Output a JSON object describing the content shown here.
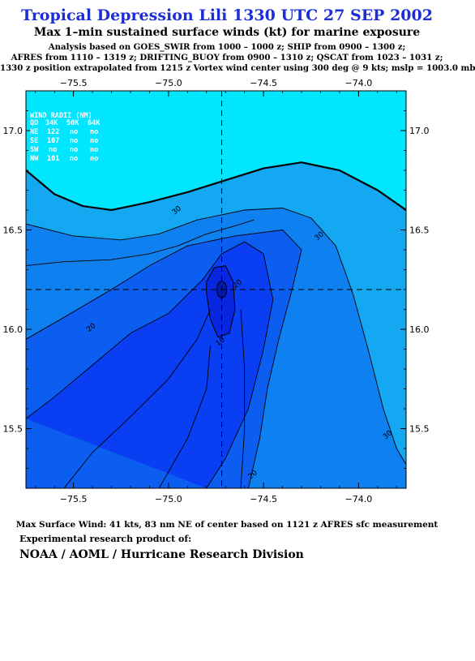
{
  "header": {
    "title": "Tropical Depression Lili 1330 UTC 27 SEP 2002",
    "subtitle": "Max 1–min sustained surface winds (kt) for marine exposure",
    "analysis_lines": [
      "Analysis based on  GOES_SWIR from 1000 – 1000 z;  SHIP from 0900 – 1300 z;",
      "AFRES from 1110 – 1319 z;  DRIFTING_BUOY from 0900 – 1310 z;  QSCAT from 1023 – 1031 z;",
      "1330 z position extrapolated from 1215 z Vortex wind center using 300 deg @ 9 kts; mslp = 1003.0 mb"
    ]
  },
  "wind_radii": {
    "title": "WIND RADII (NM)",
    "header": [
      "QD",
      "34K",
      "50K",
      "64K"
    ],
    "rows": [
      [
        "NE",
        "122",
        "no",
        "no"
      ],
      [
        "SE",
        "107",
        "no",
        "no"
      ],
      [
        "SW",
        "no",
        "no",
        "no"
      ],
      [
        "NW",
        "101",
        "no",
        "no"
      ]
    ]
  },
  "footer": {
    "max_wind": "Max Surface Wind: 41 kts, 83 nm NE of center based on 1121 z AFRES sfc measurement",
    "experimental": "Experimental research product of:",
    "org": "NOAA / AOML / Hurricane Research Division"
  },
  "colors": {
    "level_above_34": "#00e6ff",
    "level_30_34": "#14a7f2",
    "level_20_30": "#0f80f0",
    "level_10_20": "#0b5ef0",
    "level_0_10": "#0a3ef2",
    "center_core": "#0825e0",
    "contour_line": "#000000"
  },
  "chart_data": {
    "type": "contour",
    "units": "kt",
    "xlim": [
      -75.75,
      -73.75
    ],
    "ylim": [
      15.2,
      17.2
    ],
    "x_ticks": [
      -75.5,
      -75.0,
      -74.5,
      -74.0
    ],
    "x_tick_labels": [
      "−75.5",
      "−75.0",
      "−74.5",
      "−74.0"
    ],
    "y_ticks": [
      15.5,
      16.0,
      16.5,
      17.0
    ],
    "y_tick_labels": [
      "15.5",
      "16.0",
      "16.5",
      "17.0"
    ],
    "storm_center": {
      "lon": -74.72,
      "lat": 16.2
    },
    "contour_levels": [
      10,
      20,
      30,
      34
    ],
    "contour_labels": [
      {
        "text": "30",
        "lon": -74.95,
        "lat": 16.59
      },
      {
        "text": "30",
        "lon": -74.2,
        "lat": 16.46
      },
      {
        "text": "30",
        "lon": -73.84,
        "lat": 15.46
      },
      {
        "text": "20",
        "lon": -75.4,
        "lat": 16.0
      },
      {
        "text": "20",
        "lon": -74.63,
        "lat": 16.22
      },
      {
        "text": "20",
        "lon": -74.55,
        "lat": 15.26
      },
      {
        "text": "10",
        "lon": -74.72,
        "lat": 15.93
      }
    ],
    "contours": {
      "34": [
        [
          -75.75,
          16.8
        ],
        [
          -75.6,
          16.68
        ],
        [
          -75.45,
          16.62
        ],
        [
          -75.3,
          16.6
        ],
        [
          -75.1,
          16.64
        ],
        [
          -74.9,
          16.69
        ],
        [
          -74.7,
          16.75
        ],
        [
          -74.5,
          16.81
        ],
        [
          -74.3,
          16.84
        ],
        [
          -74.1,
          16.8
        ],
        [
          -73.9,
          16.7
        ],
        [
          -73.75,
          16.6
        ]
      ],
      "30": [
        [
          -75.75,
          16.53
        ],
        [
          -75.5,
          16.47
        ],
        [
          -75.25,
          16.45
        ],
        [
          -75.05,
          16.48
        ],
        [
          -74.85,
          16.55
        ],
        [
          -74.6,
          16.6
        ],
        [
          -74.4,
          16.61
        ],
        [
          -74.25,
          16.56
        ],
        [
          -74.12,
          16.42
        ],
        [
          -74.03,
          16.18
        ],
        [
          -73.95,
          15.9
        ],
        [
          -73.87,
          15.6
        ],
        [
          -73.8,
          15.4
        ],
        [
          -73.75,
          15.32
        ]
      ],
      "20": [
        [
          -75.75,
          15.95
        ],
        [
          -75.55,
          16.06
        ],
        [
          -75.3,
          16.2
        ],
        [
          -75.1,
          16.32
        ],
        [
          -74.9,
          16.42
        ],
        [
          -74.65,
          16.47
        ],
        [
          -74.4,
          16.5
        ],
        [
          -74.3,
          16.4
        ],
        [
          -74.35,
          16.2
        ],
        [
          -74.42,
          15.95
        ],
        [
          -74.48,
          15.7
        ],
        [
          -74.52,
          15.45
        ],
        [
          -74.58,
          15.2
        ]
      ],
      "10": [
        [
          -75.75,
          15.55
        ],
        [
          -75.6,
          15.66
        ],
        [
          -75.4,
          15.82
        ],
        [
          -75.2,
          15.98
        ],
        [
          -75.0,
          16.08
        ],
        [
          -74.82,
          16.25
        ],
        [
          -74.72,
          16.38
        ],
        [
          -74.6,
          16.44
        ],
        [
          -74.5,
          16.38
        ],
        [
          -74.45,
          16.15
        ],
        [
          -74.5,
          15.9
        ],
        [
          -74.58,
          15.6
        ],
        [
          -74.7,
          15.35
        ],
        [
          -74.8,
          15.2
        ]
      ],
      "ring": [
        [
          -74.8,
          16.24
        ],
        [
          -74.76,
          16.31
        ],
        [
          -74.7,
          16.32
        ],
        [
          -74.66,
          16.24
        ],
        [
          -74.65,
          16.1
        ],
        [
          -74.68,
          15.98
        ],
        [
          -74.74,
          15.96
        ],
        [
          -74.78,
          16.05
        ],
        [
          -74.8,
          16.18
        ],
        [
          -74.8,
          16.24
        ]
      ],
      "outer_left": [
        [
          -75.75,
          16.32
        ],
        [
          -75.55,
          16.34
        ],
        [
          -75.3,
          16.35
        ],
        [
          -75.1,
          16.38
        ],
        [
          -74.95,
          16.42
        ],
        [
          -74.8,
          16.48
        ],
        [
          -74.65,
          16.52
        ],
        [
          -74.55,
          16.55
        ]
      ],
      "bottom_left": [
        [
          -75.55,
          15.2
        ],
        [
          -75.4,
          15.38
        ],
        [
          -75.2,
          15.56
        ],
        [
          -75.0,
          15.75
        ],
        [
          -74.85,
          15.95
        ],
        [
          -74.78,
          16.1
        ]
      ],
      "bottom_mid": [
        [
          -74.78,
          15.92
        ],
        [
          -74.8,
          15.7
        ],
        [
          -74.9,
          15.45
        ],
        [
          -75.05,
          15.2
        ]
      ],
      "bottom_right": [
        [
          -74.62,
          16.1
        ],
        [
          -74.6,
          15.8
        ],
        [
          -74.6,
          15.5
        ],
        [
          -74.62,
          15.2
        ]
      ]
    }
  }
}
